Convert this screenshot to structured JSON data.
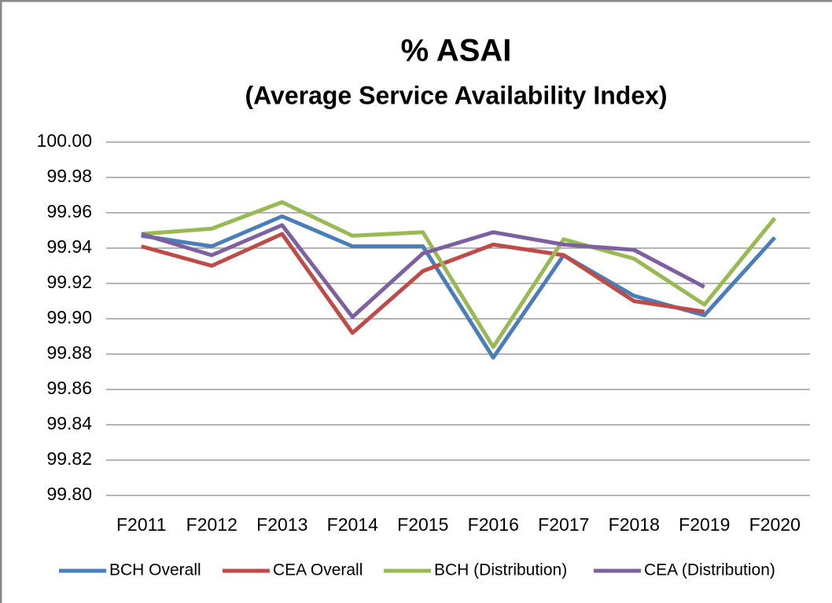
{
  "chart_data": {
    "type": "line",
    "title": "% ASAI",
    "subtitle": "(Average Service Availability Index)",
    "categories": [
      "F2011",
      "F2012",
      "F2013",
      "F2014",
      "F2015",
      "F2016",
      "F2017",
      "F2018",
      "F2019",
      "F2020"
    ],
    "series": [
      {
        "name": "BCH Overall",
        "color": "#4a7ebb",
        "values": [
          99.947,
          99.941,
          99.958,
          99.941,
          99.941,
          99.878,
          99.936,
          99.913,
          99.902,
          99.946
        ]
      },
      {
        "name": "CEA Overall",
        "color": "#be4b48",
        "values": [
          99.941,
          99.93,
          99.948,
          99.892,
          99.927,
          99.942,
          99.936,
          99.91,
          99.904,
          null
        ]
      },
      {
        "name": "BCH (Distribution)",
        "color": "#98b954",
        "values": [
          99.948,
          99.951,
          99.966,
          99.947,
          99.949,
          99.884,
          99.945,
          99.934,
          99.908,
          99.957
        ]
      },
      {
        "name": "CEA (Distribution)",
        "color": "#7d60a0",
        "values": [
          99.948,
          99.936,
          99.953,
          99.901,
          99.937,
          99.949,
          99.942,
          99.939,
          99.918,
          null
        ]
      }
    ],
    "ylim": [
      99.8,
      100
    ],
    "yticks": [
      {
        "value": 99.8,
        "label": "99.80"
      },
      {
        "value": 99.82,
        "label": "99.82"
      },
      {
        "value": 99.84,
        "label": "99.84"
      },
      {
        "value": 99.86,
        "label": "99.86"
      },
      {
        "value": 99.88,
        "label": "99.88"
      },
      {
        "value": 99.9,
        "label": "99.90"
      },
      {
        "value": 99.92,
        "label": "99.92"
      },
      {
        "value": 99.94,
        "label": "99.94"
      },
      {
        "value": 99.96,
        "label": "99.96"
      },
      {
        "value": 99.98,
        "label": "99.98"
      },
      {
        "value": 100,
        "label": "100.00"
      }
    ],
    "grid": true,
    "legend": "bottom"
  }
}
